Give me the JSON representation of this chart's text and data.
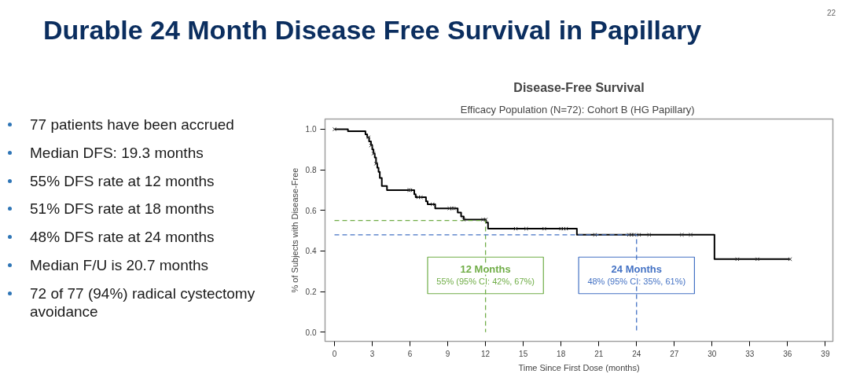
{
  "chart_data": {
    "type": "step",
    "title": "Disease-Free Survival",
    "subtitle": "Efficacy Population (N=72):  Cohort B (HG Papillary)",
    "xlabel": "Time Since First Dose (months)",
    "ylabel": "% of Subjects with Disease-Free",
    "xlim": [
      -0.75,
      39.6
    ],
    "ylim": [
      -0.045,
      1.05
    ],
    "xticks": [
      0,
      3,
      6,
      9,
      12,
      15,
      18,
      21,
      24,
      27,
      30,
      33,
      36,
      39
    ],
    "yticks": [
      {
        "value": 0,
        "label": "0.0"
      },
      0.2,
      0.4,
      0.6,
      0.8,
      {
        "value": 1,
        "label": "1.0"
      }
    ],
    "grid": false,
    "series": [
      {
        "color": "#000000",
        "line_style": "solid",
        "x": [
          0,
          1.07,
          2.46,
          2.6,
          2.75,
          2.9,
          3.0,
          3.1,
          3.2,
          3.3,
          3.4,
          3.5,
          3.6,
          3.76,
          4.17,
          6.34,
          6.45,
          7.27,
          7.4,
          8.0,
          9.79,
          10.06,
          10.27,
          12.02,
          12.2,
          19.26,
          30.19,
          36.16
        ],
        "values": [
          1.0,
          0.99,
          0.975,
          0.96,
          0.94,
          0.92,
          0.9,
          0.88,
          0.86,
          0.83,
          0.81,
          0.79,
          0.76,
          0.72,
          0.7,
          0.68,
          0.665,
          0.645,
          0.63,
          0.61,
          0.59,
          0.57,
          0.555,
          0.54,
          0.51,
          0.48,
          0.36,
          0.36
        ]
      },
      {
        "type": "line",
        "color": "#70ad47",
        "line_style": "dashed",
        "x": [
          0,
          12,
          12
        ],
        "values": [
          0.55,
          0.55,
          0
        ]
      },
      {
        "type": "line",
        "color": "#4472c4",
        "line_style": "dashed",
        "x": [
          0,
          24,
          24
        ],
        "values": [
          0.48,
          0.48,
          0
        ]
      },
      {
        "type": "scatter",
        "color": "#333333",
        "marker": "cross",
        "x": [
          0,
          2.7,
          2.9,
          3.1,
          3.3,
          5.93,
          6.03,
          6.65,
          6.86,
          7.79,
          9.13,
          9.34,
          9.48,
          10.27,
          11.82,
          12.02,
          14.4,
          15.23,
          16.67,
          18.0,
          18.2,
          18.4,
          20.7,
          23.4,
          23.6,
          23.8,
          24.2,
          25.0,
          27.6,
          28.3,
          32.0,
          33.6,
          36.2
        ],
        "values": [
          1.0,
          0.96,
          0.92,
          0.88,
          0.83,
          0.7,
          0.7,
          0.665,
          0.665,
          0.63,
          0.61,
          0.61,
          0.61,
          0.555,
          0.555,
          0.555,
          0.51,
          0.51,
          0.51,
          0.51,
          0.51,
          0.51,
          0.48,
          0.48,
          0.48,
          0.48,
          0.48,
          0.48,
          0.48,
          0.48,
          0.36,
          0.36,
          0.36
        ]
      }
    ],
    "annotations": [
      "Durable 24 Month Disease Free Survival in Papillary",
      "22",
      "77 patients have been accrued",
      "Median DFS: 19.3 months",
      "55% DFS rate at 12 months",
      "51% DFS rate at 18 months",
      "48% DFS rate at 24 months",
      "Median F/U is 20.7 months",
      "72 of 77 (94%) radical cystectomy avoidance",
      {
        "text": "12 Months\n55% (95% CI: 42%, 67%)",
        "x": 12,
        "y": 0.28
      },
      {
        "text": "24 Months\n48% (95% CI: 35%, 61%)",
        "x": 24,
        "y": 0.28
      }
    ]
  }
}
